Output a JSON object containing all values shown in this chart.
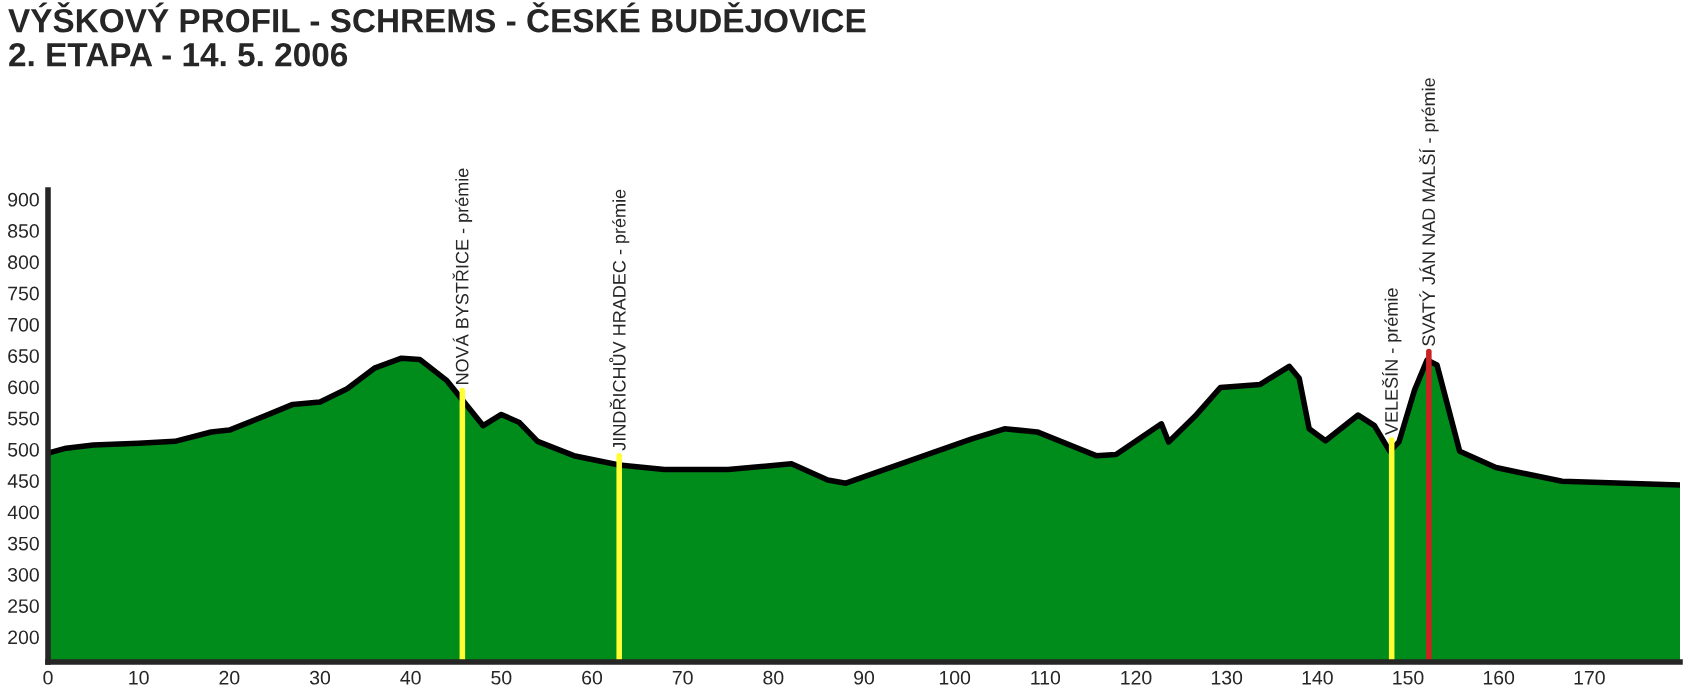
{
  "chart_data": {
    "type": "area",
    "title": "VÝŠKOVÝ PROFIL - SCHREMS - ČESKÉ BUDĚJOVICE",
    "subtitle": "2. ETAPA - 14. 5. 2006",
    "x": [
      0,
      2,
      5,
      10,
      14,
      18,
      20,
      24,
      27,
      30,
      33,
      36,
      39,
      41,
      44,
      46,
      48,
      50,
      52,
      54,
      58,
      63,
      68,
      75,
      82,
      86,
      88,
      101.9,
      105.5,
      109.1,
      115.6,
      117.8,
      122.8,
      123.6,
      126.5,
      129.3,
      133.7,
      136.9,
      138.0,
      139.1,
      140.9,
      144.5,
      146.3,
      148.0,
      149.0,
      150.7,
      152.1,
      153.2,
      155.7,
      159.7,
      167.0,
      180
    ],
    "series": [
      {
        "color": "#008c1a",
        "values": [
          494,
          502,
          507,
          510,
          513,
          528,
          531,
          554,
          572,
          576,
          597,
          630,
          646,
          644,
          610,
          574,
          538,
          556,
          543,
          513,
          490,
          475,
          468,
          468,
          477,
          451,
          446,
          517,
          533,
          528,
          490,
          492,
          541,
          512,
          553,
          599,
          604,
          633,
          614,
          533,
          514,
          555,
          538,
          497,
          512,
          594,
          643,
          635,
          497,
          471,
          449,
          443
        ]
      }
    ],
    "xlim": [
      0,
      180
    ],
    "ylim": [
      160,
      915
    ],
    "xticks": [
      0,
      10,
      20,
      30,
      40,
      50,
      60,
      70,
      80,
      90,
      100,
      110,
      120,
      130,
      140,
      150,
      160,
      170
    ],
    "yticks": [
      200,
      250,
      300,
      350,
      400,
      450,
      500,
      550,
      600,
      650,
      700,
      750,
      800,
      850,
      900
    ],
    "grid": false,
    "legend": false,
    "ref_lines": [
      {
        "axis": "x",
        "value": 45.7,
        "label": "NOVÁ BYSTŘICE - prémie",
        "color": "#ffff33"
      },
      {
        "axis": "x",
        "value": 63.0,
        "label": "JINDŘICHŮV HRADEC - prémie",
        "color": "#ffff33"
      },
      {
        "axis": "x",
        "value": 148.2,
        "label": "VELEŠÍN - prémie",
        "color": "#ffff33"
      },
      {
        "axis": "x",
        "value": 152.3,
        "label": "SVATÝ JÁN NAD MALŠÍ - prémie",
        "color": "#cc2222"
      }
    ]
  }
}
